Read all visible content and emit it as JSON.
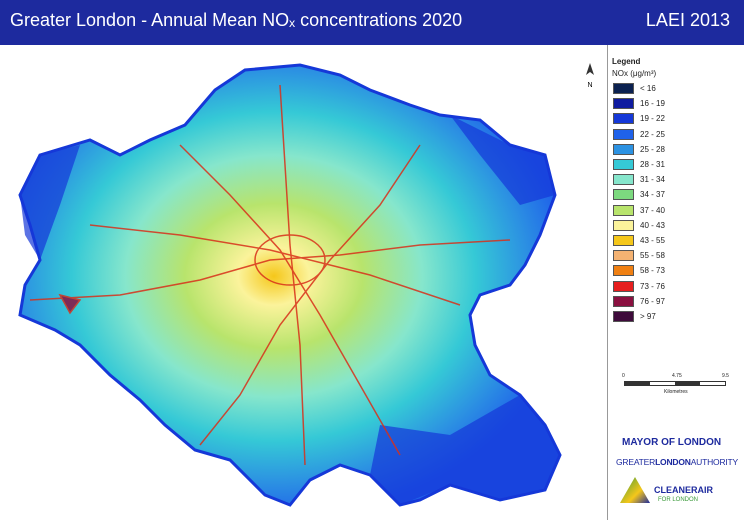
{
  "header": {
    "title": "Greater London - Annual Mean NOₓ concentrations 2020",
    "right": "LAEI 2013"
  },
  "map": {
    "north": "N"
  },
  "legend": {
    "title": "Legend",
    "unit": "NOx (μg/m³)",
    "items": [
      {
        "label": "< 16",
        "color": "#0b2150"
      },
      {
        "label": "16 - 19",
        "color": "#0f1ba0"
      },
      {
        "label": "19 - 22",
        "color": "#1538d8"
      },
      {
        "label": "22 - 25",
        "color": "#1f62ea"
      },
      {
        "label": "25 - 28",
        "color": "#2c92e2"
      },
      {
        "label": "28 - 31",
        "color": "#35c9d6"
      },
      {
        "label": "31 - 34",
        "color": "#86e6cc"
      },
      {
        "label": "34 - 37",
        "color": "#7cd97f"
      },
      {
        "label": "37 - 40",
        "color": "#b8e46c"
      },
      {
        "label": "40 - 43",
        "color": "#fbf39b"
      },
      {
        "label": "43 - 55",
        "color": "#f5c71a"
      },
      {
        "label": "55 - 58",
        "color": "#f4b272"
      },
      {
        "label": "58 - 73",
        "color": "#f08012"
      },
      {
        "label": "73 - 76",
        "color": "#e61e1e"
      },
      {
        "label": "76 - 97",
        "color": "#8a1040"
      },
      {
        "label": "> 97",
        "color": "#3e0b3b"
      }
    ]
  },
  "scale_bar": {
    "ticks": [
      "0",
      "4.75",
      "9.5"
    ],
    "unit": "Kilometres"
  },
  "logos": {
    "mayor": "MAYOR OF LONDON",
    "gla": [
      "GREATER",
      "LONDON",
      "AUTHORITY"
    ],
    "clean_air": "CLEANERAIR",
    "clean_air_sub": "FOR LONDON"
  }
}
